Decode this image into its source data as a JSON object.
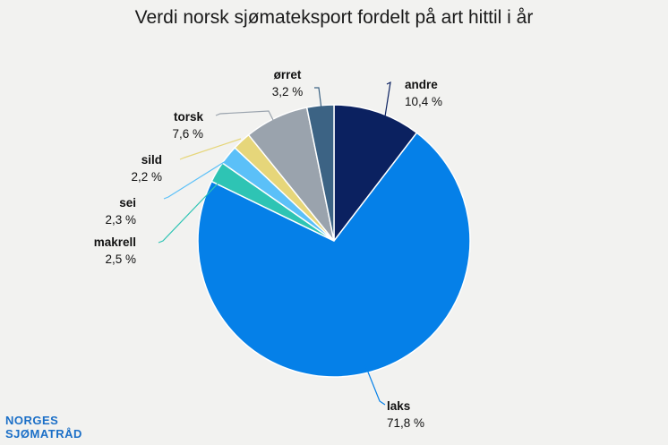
{
  "chart_data": {
    "type": "pie",
    "title": "Verdi norsk sjømateksport fordelt på art hittil i år",
    "slices": [
      {
        "name": "andre",
        "label": "10,4 %",
        "value": 10.4,
        "color": "#0b2160"
      },
      {
        "name": "laks",
        "label": "71,8 %",
        "value": 71.8,
        "color": "#0580e8"
      },
      {
        "name": "makrell",
        "label": "2,5 %",
        "value": 2.5,
        "color": "#2ec4b4"
      },
      {
        "name": "sei",
        "label": "2,3 %",
        "value": 2.3,
        "color": "#5bc0f8"
      },
      {
        "name": "sild",
        "label": "2,2 %",
        "value": 2.2,
        "color": "#e6d67a"
      },
      {
        "name": "torsk",
        "label": "7,6 %",
        "value": 7.6,
        "color": "#9aa3ad"
      },
      {
        "name": "ørret",
        "label": "3,2 %",
        "value": 3.2,
        "color": "#3c6384"
      }
    ]
  },
  "logo": {
    "line1": "NORGES",
    "line2": "SJØMATRÅD"
  }
}
